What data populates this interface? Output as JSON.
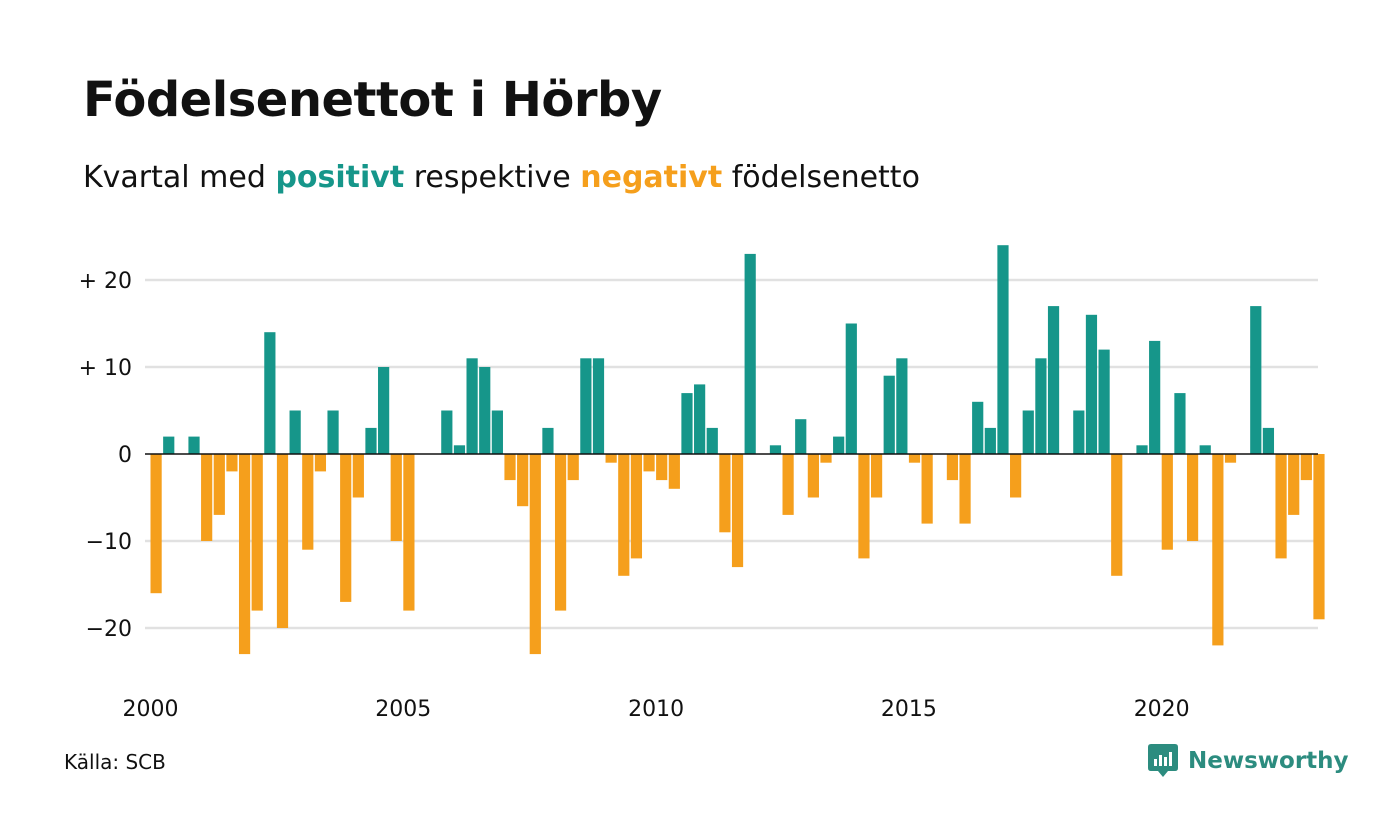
{
  "title": "Födelsenettot i Hörby",
  "subtitle": {
    "before": "Kvartal med",
    "positive_word": "positivt",
    "middle": "respektive",
    "negative_word": "negativt",
    "after": "födelsenetto"
  },
  "source": "Källa: SCB",
  "brand": {
    "name": "Newsworthy",
    "icon": "newsworthy-logo-icon"
  },
  "colors": {
    "positive": "#16968a",
    "negative": "#f59f1c",
    "brand": "#2c8c7f",
    "grid": "#e1e1e1",
    "zero_line": "#111111"
  },
  "chart_data": {
    "type": "bar",
    "title": "Födelsenettot i Hörby",
    "xlabel": "",
    "ylabel": "",
    "ylim": [
      -26,
      24
    ],
    "y_ticks": [
      {
        "value": 20,
        "label": "+ 20"
      },
      {
        "value": 10,
        "label": "+ 10"
      },
      {
        "value": 0,
        "label": "0"
      },
      {
        "value": -10,
        "label": "−10"
      },
      {
        "value": -20,
        "label": "−20"
      }
    ],
    "x_ticks": [
      "2000",
      "2005",
      "2010",
      "2015",
      "2020"
    ],
    "grid": true,
    "legend": "none",
    "start_period": "2000 Q1",
    "series": [
      {
        "values": [
          -16,
          2,
          0,
          2,
          -10,
          -7,
          -2,
          -23,
          -18,
          14,
          -20,
          5,
          -11,
          -2,
          5,
          -17,
          -5,
          3,
          10,
          -10,
          -18,
          0,
          0,
          5,
          1,
          11,
          10,
          5,
          -3,
          -6,
          -23,
          3,
          -18,
          -3,
          11,
          11,
          -1,
          -14,
          -12,
          -2,
          -3,
          -4,
          7,
          8,
          3,
          -9,
          -13,
          23,
          0,
          1,
          -7,
          4,
          -5,
          -1,
          2,
          15,
          -12,
          -5,
          9,
          11,
          -1,
          -8,
          0,
          -3,
          -8,
          6,
          3,
          24,
          -5,
          5,
          11,
          17,
          0,
          5,
          16,
          12,
          -14,
          0,
          1,
          13,
          -11,
          7,
          -10,
          1,
          -22,
          -1,
          0,
          17,
          3,
          -12,
          -7,
          -3,
          -19
        ]
      }
    ]
  }
}
